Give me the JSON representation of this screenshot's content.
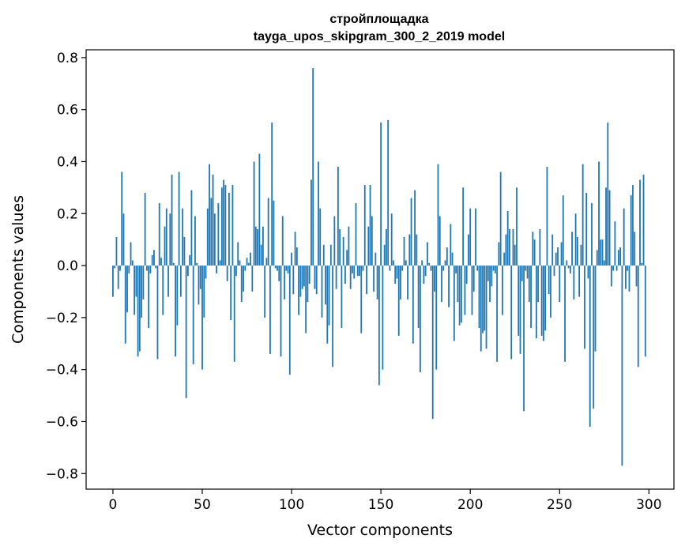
{
  "chart_data": {
    "type": "bar",
    "title_line1": "стройплощадка",
    "title_line2": "tayga_upos_skipgram_300_2_2019 model",
    "xlabel": "Vector components",
    "ylabel": "Components values",
    "xlim": [
      -15,
      314
    ],
    "ylim": [
      -0.86,
      0.83
    ],
    "xticks": [
      0,
      50,
      100,
      150,
      200,
      250,
      300
    ],
    "xtick_labels": [
      "0",
      "50",
      "100",
      "150",
      "200",
      "250",
      "300"
    ],
    "yticks": [
      -0.8,
      -0.6,
      -0.4,
      -0.2,
      0.0,
      0.2,
      0.4,
      0.6,
      0.8
    ],
    "ytick_labels": [
      "−0.8",
      "−0.6",
      "−0.4",
      "−0.2",
      "0.0",
      "0.2",
      "0.4",
      "0.6",
      "0.8"
    ],
    "bar_color": "#1f77b4",
    "grid": false,
    "values": [
      -0.12,
      -0.01,
      0.11,
      -0.09,
      -0.02,
      0.36,
      0.2,
      -0.3,
      -0.18,
      -0.03,
      0.09,
      0.02,
      -0.19,
      -0.12,
      -0.35,
      -0.33,
      -0.2,
      -0.13,
      0.28,
      -0.02,
      -0.24,
      -0.03,
      0.04,
      0.06,
      -0.01,
      -0.36,
      0.24,
      0.03,
      -0.19,
      0.15,
      0.22,
      -0.12,
      0.2,
      0.35,
      0.01,
      -0.35,
      -0.23,
      0.36,
      -0.12,
      0.22,
      0.11,
      -0.51,
      -0.04,
      0.04,
      0.29,
      -0.38,
      0.19,
      0.01,
      -0.15,
      -0.09,
      -0.4,
      -0.2,
      -0.05,
      0.22,
      0.39,
      0.26,
      0.35,
      0.2,
      -0.03,
      0.24,
      0.02,
      0.3,
      0.33,
      0.31,
      -0.06,
      0.28,
      -0.21,
      0.31,
      -0.37,
      -0.04,
      0.09,
      0.02,
      -0.14,
      -0.1,
      -0.02,
      0.03,
      0.01,
      0.05,
      -0.1,
      0.4,
      0.15,
      0.14,
      0.43,
      0.08,
      0.15,
      -0.2,
      0.03,
      0.26,
      -0.34,
      0.55,
      0.25,
      -0.01,
      -0.02,
      -0.06,
      -0.35,
      0.19,
      -0.13,
      -0.02,
      -0.03,
      -0.42,
      0.05,
      -0.11,
      0.13,
      0.07,
      -0.19,
      -0.12,
      -0.09,
      -0.08,
      -0.26,
      -0.14,
      -0.07,
      0.33,
      0.76,
      -0.09,
      -0.11,
      0.4,
      0.22,
      -0.2,
      0.08,
      -0.15,
      -0.3,
      -0.23,
      0.08,
      -0.39,
      0.19,
      -0.09,
      0.38,
      0.14,
      -0.24,
      0.11,
      -0.07,
      0.06,
      0.15,
      -0.09,
      -0.03,
      -0.05,
      0.24,
      -0.04,
      -0.04,
      -0.26,
      -0.02,
      0.31,
      -0.11,
      0.15,
      0.31,
      0.19,
      -0.1,
      0.05,
      -0.13,
      -0.46,
      0.55,
      -0.4,
      0.08,
      0.14,
      0.56,
      -0.02,
      0.2,
      0.02,
      -0.07,
      -0.05,
      -0.27,
      -0.13,
      -0.02,
      0.11,
      0.02,
      -0.13,
      0.12,
      0.26,
      -0.3,
      0.29,
      0.12,
      -0.24,
      -0.41,
      0.02,
      -0.07,
      -0.04,
      0.09,
      0.01,
      -0.02,
      -0.59,
      -0.1,
      -0.4,
      0.39,
      0.19,
      -0.14,
      -0.02,
      0.02,
      0.07,
      -0.16,
      0.16,
      0.05,
      -0.29,
      -0.03,
      -0.14,
      -0.23,
      -0.22,
      0.3,
      -0.19,
      -0.07,
      0.12,
      0.22,
      -0.19,
      -0.1,
      0.22,
      -0.02,
      -0.24,
      -0.33,
      -0.26,
      -0.25,
      -0.32,
      -0.06,
      -0.14,
      -0.08,
      -0.02,
      -0.03,
      -0.37,
      0.09,
      0.36,
      -0.19,
      0.05,
      0.12,
      0.21,
      0.14,
      -0.36,
      0.14,
      0.08,
      0.3,
      -0.27,
      -0.34,
      -0.06,
      -0.56,
      -0.02,
      -0.05,
      -0.14,
      -0.24,
      0.13,
      0.1,
      -0.28,
      -0.14,
      0.14,
      -0.27,
      -0.29,
      -0.25,
      0.38,
      -0.11,
      -0.2,
      0.12,
      -0.04,
      0.05,
      0.07,
      -0.14,
      0.09,
      0.27,
      -0.37,
      0.02,
      -0.01,
      -0.03,
      0.13,
      -0.13,
      0.2,
      0.11,
      -0.12,
      0.08,
      0.39,
      -0.32,
      0.28,
      -0.05,
      -0.62,
      0.24,
      -0.55,
      -0.33,
      0.06,
      0.4,
      0.1,
      0.1,
      0.02,
      0.3,
      0.55,
      0.29,
      -0.08,
      -0.02,
      0.17,
      -0.02,
      0.06,
      0.07,
      -0.77,
      0.22,
      -0.09,
      -0.02,
      -0.1,
      0.27,
      0.31,
      0.13,
      -0.08,
      -0.39,
      0.33,
      0.01,
      0.35,
      -0.35
    ]
  }
}
